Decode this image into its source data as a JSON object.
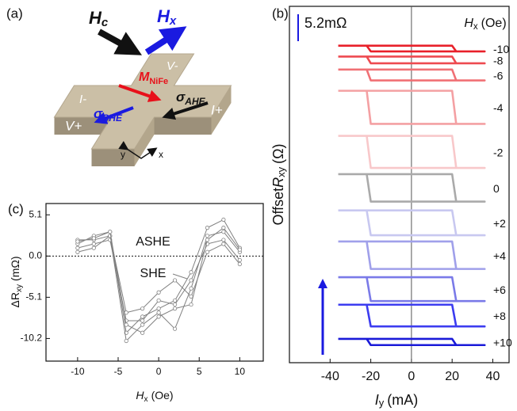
{
  "panel_a": {
    "label": "(a)",
    "hc": {
      "main": "H",
      "sub": "c"
    },
    "hx": {
      "main": "H",
      "sub": "x"
    },
    "m": {
      "main": "M",
      "sub": "NiFe"
    },
    "sigma_she": {
      "main": "σ",
      "sub": "SHE"
    },
    "sigma_ahe": {
      "main": "σ",
      "sub": "AHE"
    },
    "terminals": [
      "I-",
      "V-",
      "V+",
      "I+"
    ],
    "axes": [
      "y",
      "x"
    ]
  },
  "chart_data": [
    {
      "type": "line",
      "panel_label": "(b)",
      "xlabel": {
        "main": "I",
        "sub": "y",
        "unit": "(mA)"
      },
      "ylabel": {
        "pre": "Offset",
        "main": "R",
        "sub": "xy",
        "unit": "(Ω)"
      },
      "legend_title": {
        "main": "H",
        "sub": "x",
        "unit": "(Oe)"
      },
      "scale_bar": {
        "value": 5.2,
        "label": "5.2mΩ"
      },
      "xlim": [
        -60,
        48
      ],
      "xticks": [
        -40,
        -20,
        0,
        20,
        40
      ],
      "ylim": [
        0,
        68.8
      ],
      "series": [
        {
          "name": "-10",
          "color": "#e8202a",
          "x": [
            -36,
            20,
            22,
            36,
            -20,
            -22,
            -36
          ],
          "values": [
            61.2,
            61.2,
            60.1,
            60.1,
            60.1,
            61.2,
            61.2
          ]
        },
        {
          "name": "-8",
          "color": "#ee4a50",
          "x": [
            -36,
            20,
            22,
            36,
            -20,
            -22,
            -36
          ],
          "values": [
            59.1,
            59.1,
            57.8,
            57.8,
            57.8,
            59.1,
            59.1
          ]
        },
        {
          "name": "-6",
          "color": "#f07075",
          "x": [
            -36,
            20,
            22,
            36,
            -20,
            -22,
            -36
          ],
          "values": [
            56.6,
            56.6,
            54.5,
            54.5,
            54.5,
            56.6,
            56.6
          ]
        },
        {
          "name": "-4",
          "color": "#f4a0a3",
          "x": [
            -36,
            20,
            22,
            36,
            -20,
            -22,
            -36
          ],
          "values": [
            52.5,
            52.5,
            46.1,
            46.1,
            46.1,
            52.5,
            52.5
          ]
        },
        {
          "name": "-2",
          "color": "#f8c8ca",
          "x": [
            -36,
            20,
            22,
            36,
            -20,
            -22,
            -36
          ],
          "values": [
            43.8,
            43.8,
            37.6,
            37.6,
            37.6,
            43.8,
            43.8
          ]
        },
        {
          "name": "0",
          "color": "#aaaaaa",
          "x": [
            -36,
            20,
            22,
            36,
            -20,
            -22,
            -36
          ],
          "values": [
            36.4,
            36.4,
            31.1,
            31.1,
            31.1,
            36.4,
            36.4
          ]
        },
        {
          "name": "+2",
          "color": "#c8c8f0",
          "x": [
            -36,
            20,
            22,
            36,
            -20,
            -22,
            -36
          ],
          "values": [
            29.4,
            29.4,
            24.6,
            24.6,
            24.6,
            29.4,
            29.4
          ]
        },
        {
          "name": "+4",
          "color": "#a0a0ea",
          "x": [
            -36,
            20,
            22,
            36,
            -20,
            -22,
            -36
          ],
          "values": [
            23.4,
            23.4,
            18.1,
            18.1,
            18.1,
            23.4,
            23.4
          ]
        },
        {
          "name": "+6",
          "color": "#7a7ae8",
          "x": [
            -36,
            20,
            22,
            36,
            -20,
            -22,
            -36
          ],
          "values": [
            16.5,
            16.5,
            11.9,
            11.9,
            11.9,
            16.5,
            16.5
          ]
        },
        {
          "name": "+8",
          "color": "#3c3cf0",
          "x": [
            -36,
            20,
            22,
            36,
            -20,
            -22,
            -36
          ],
          "values": [
            11.2,
            11.2,
            7.0,
            7.0,
            7.0,
            11.2,
            11.2
          ]
        },
        {
          "name": "+10",
          "color": "#1a1ad8",
          "x": [
            -36,
            20,
            22,
            36,
            -20,
            -22,
            -36
          ],
          "values": [
            4.6,
            4.6,
            3.4,
            3.4,
            3.4,
            4.6,
            4.6
          ]
        }
      ]
    },
    {
      "type": "line",
      "panel_label": "(c)",
      "xlabel": {
        "main": "H",
        "sub": "x",
        "unit": "(Oe)"
      },
      "ylabel": {
        "main": "ΔR",
        "sub": "xy",
        "unit": "(mΩ)"
      },
      "xlim": [
        -13.9,
        12.9
      ],
      "xticks": [
        -10,
        -5,
        0,
        5,
        10
      ],
      "ylim": [
        -13,
        6.5
      ],
      "yticks": [
        5.1,
        {
          "value": 0,
          "label": "0.0"
        },
        -5.1,
        -10.2
      ],
      "annotations": [
        "ASHE",
        "SHE"
      ],
      "x": [
        -10,
        -8,
        -6,
        -4,
        -2,
        0,
        2,
        4,
        6,
        8,
        10
      ],
      "series": [
        {
          "color": "#808080",
          "values": [
            1.5,
            2.5,
            3.0,
            -9.5,
            -7.5,
            -6.5,
            -5.5,
            -2,
            3.5,
            4.5,
            1
          ]
        },
        {
          "color": "#808080",
          "values": [
            2.0,
            2.0,
            2.5,
            -10.5,
            -8.5,
            -7.0,
            -9.0,
            -4,
            2.5,
            3.0,
            0.5
          ]
        },
        {
          "color": "#808080",
          "values": [
            1.0,
            1.5,
            2.0,
            -8.0,
            -8.0,
            -5.5,
            -6.0,
            -3,
            1.5,
            2.0,
            -0.5
          ]
        },
        {
          "color": "#808080",
          "values": [
            0.5,
            1.0,
            2.5,
            -7.0,
            -6.5,
            -4.5,
            -3.0,
            -5,
            0.5,
            1.5,
            -1.0
          ]
        },
        {
          "color": "#808080",
          "values": [
            1.8,
            2.2,
            3.0,
            -8.5,
            -9.5,
            -7.5,
            -6.5,
            -6,
            2.0,
            3.5,
            0.8
          ]
        }
      ]
    }
  ]
}
